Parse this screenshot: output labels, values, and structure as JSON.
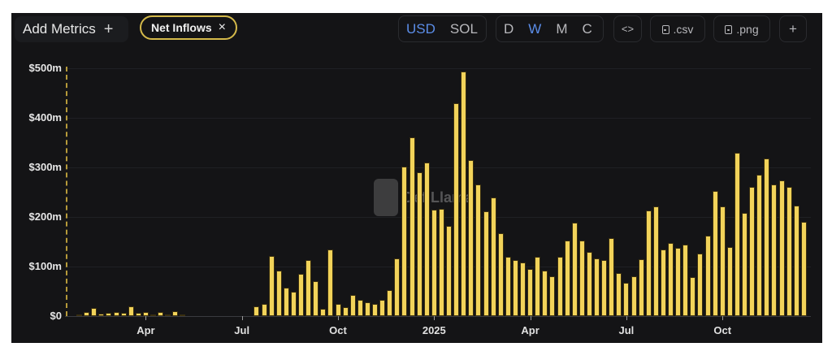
{
  "toolbar": {
    "add_metrics_label": "Add Metrics",
    "add_metrics_icon": "+",
    "metric_pill_label": "Net Inflows",
    "metric_pill_close": "×",
    "currency": {
      "options": [
        "USD",
        "SOL"
      ],
      "active": "USD"
    },
    "period": {
      "options": [
        "D",
        "W",
        "M",
        "C"
      ],
      "active": "W"
    },
    "embed_label": "<>",
    "csv_label": ".csv",
    "png_label": ".png",
    "add_label": "+"
  },
  "colors": {
    "bar": "#f2d35a",
    "accent_active": "#5b8de8",
    "pill_border": "#d4b94a",
    "background": "#141416"
  },
  "watermark": "DefiLlama",
  "chart_data": {
    "type": "bar",
    "title": "Net Inflows",
    "xlabel": "",
    "ylabel": "",
    "unit": "USD",
    "granularity": "weekly",
    "ylim": [
      0,
      500
    ],
    "y_ticks": [
      "$0",
      "$100m",
      "$200m",
      "$300m",
      "$400m",
      "$500m"
    ],
    "x_ticks": [
      {
        "label": "Apr",
        "index": 9
      },
      {
        "label": "Jul",
        "index": 22
      },
      {
        "label": "Oct",
        "index": 35
      },
      {
        "label": "2025",
        "index": 48
      },
      {
        "label": "Apr",
        "index": 61
      },
      {
        "label": "Jul",
        "index": 74
      },
      {
        "label": "Oct",
        "index": 87
      }
    ],
    "grid": true,
    "legend": "none",
    "series": [
      {
        "name": "Net Inflows ($m)",
        "values": [
          3,
          8,
          16,
          5,
          6,
          9,
          6,
          20,
          6,
          9,
          4,
          8,
          3,
          10,
          2,
          0,
          0,
          0,
          0,
          0,
          0,
          0,
          0,
          0,
          20,
          25,
          122,
          92,
          58,
          50,
          85,
          113,
          70,
          15,
          135,
          25,
          18,
          42,
          32,
          28,
          25,
          32,
          52,
          117,
          302,
          360,
          290,
          310,
          215,
          217,
          182,
          430,
          493,
          315,
          265,
          212,
          240,
          167,
          120,
          113,
          108,
          95,
          120,
          92,
          80,
          120,
          153,
          188,
          152,
          130,
          117,
          113,
          157,
          87,
          67,
          80,
          115,
          213,
          222,
          135,
          148,
          137,
          145,
          78,
          127,
          163,
          252,
          222,
          140,
          330,
          208,
          260,
          285,
          318,
          265,
          273,
          260,
          223,
          190
        ]
      }
    ]
  }
}
